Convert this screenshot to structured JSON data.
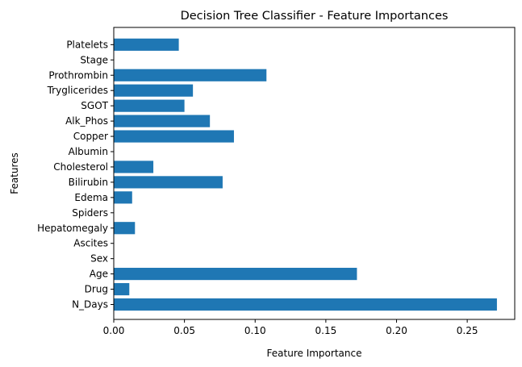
{
  "chart_data": {
    "type": "bar",
    "orientation": "horizontal",
    "title": "Decision Tree Classifier - Feature Importances",
    "xlabel": "Feature Importance",
    "ylabel": "Features",
    "categories": [
      "N_Days",
      "Drug",
      "Age",
      "Sex",
      "Ascites",
      "Hepatomegaly",
      "Spiders",
      "Edema",
      "Bilirubin",
      "Cholesterol",
      "Albumin",
      "Copper",
      "Alk_Phos",
      "SGOT",
      "Tryglicerides",
      "Prothrombin",
      "Stage",
      "Platelets"
    ],
    "values": [
      0.271,
      0.011,
      0.172,
      0.0,
      0.0,
      0.015,
      0.0,
      0.013,
      0.077,
      0.028,
      0.0,
      0.085,
      0.068,
      0.05,
      0.056,
      0.108,
      0.0,
      0.046
    ],
    "xlim": [
      0,
      0.2836
    ],
    "xticks": [
      "0.00",
      "0.05",
      "0.10",
      "0.15",
      "0.20",
      "0.25"
    ],
    "xtick_values": [
      0,
      0.05,
      0.1,
      0.15,
      0.2,
      0.25
    ],
    "bar_color": "#1f77b4",
    "grid": false,
    "legend": false
  }
}
